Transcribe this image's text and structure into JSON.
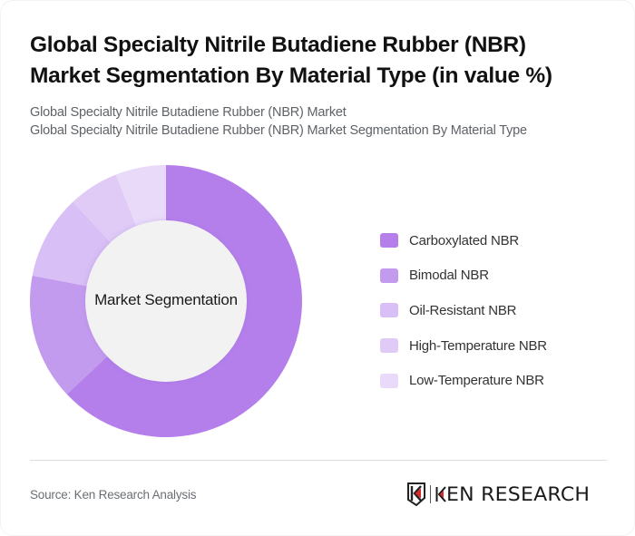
{
  "header": {
    "title_line1": "Global Specialty Nitrile Butadiene Rubber (NBR)",
    "title_line2": "Market Segmentation By Material Type (in value %)",
    "subtitle_line1": "Global Specialty Nitrile Butadiene Rubber (NBR) Market",
    "subtitle_line2": "Global Specialty Nitrile Butadiene Rubber (NBR) Market Segmentation By Material Type"
  },
  "chart": {
    "center_label": "Market Segmentation"
  },
  "legend": [
    {
      "label": "Carboxylated NBR",
      "color": "#B47FEB"
    },
    {
      "label": "Bimodal NBR",
      "color": "#C39BEE"
    },
    {
      "label": "Oil-Resistant NBR",
      "color": "#D8BFF5"
    },
    {
      "label": "High-Temperature NBR",
      "color": "#E0CBF6"
    },
    {
      "label": "Low-Temperature NBR",
      "color": "#E9DAFA"
    }
  ],
  "footer": {
    "source": "Source: Ken Research Analysis",
    "logo_text": "KEN RESEARCH"
  },
  "chart_data": {
    "type": "pie",
    "subtype": "donut",
    "title": "Global Specialty Nitrile Butadiene Rubber (NBR) Market Segmentation By Material Type (in value %)",
    "center_label": "Market Segmentation",
    "categories": [
      "Carboxylated NBR",
      "Bimodal NBR",
      "Oil-Resistant NBR",
      "High-Temperature NBR",
      "Low-Temperature NBR"
    ],
    "values": [
      63,
      15,
      10,
      6,
      6
    ],
    "colors": [
      "#B47FEB",
      "#C39BEE",
      "#D8BFF5",
      "#E0CBF6",
      "#E9DAFA"
    ],
    "unit": "%",
    "start_angle": "12 o'clock, clockwise",
    "legend_position": "right"
  }
}
